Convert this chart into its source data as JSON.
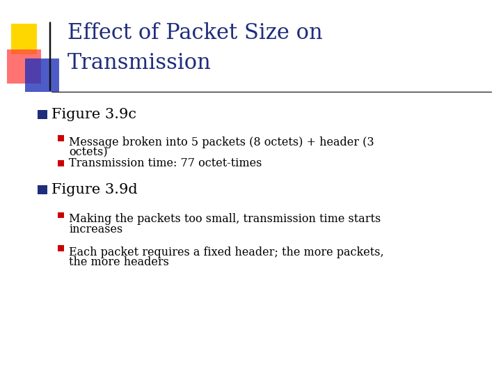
{
  "title_line1": "Effect of Packet Size on",
  "title_line2": "Transmission",
  "title_color": "#1F2D7B",
  "bg_color": "#FFFFFF",
  "bullet1": "Figure 3.9c",
  "sub_bullet1_1a": "Message broken into 5 packets (8 octets) + header (3",
  "sub_bullet1_1b": "octets)",
  "sub_bullet1_2": "Transmission time: 77 octet-times",
  "bullet2": "Figure 3.9d",
  "sub_bullet2_1a": "Making the packets too small, transmission time starts",
  "sub_bullet2_1b": "increases",
  "sub_bullet2_2a": "Each packet requires a fixed header; the more packets,",
  "sub_bullet2_2b": "the more headers",
  "bullet_color": "#1F2D7B",
  "sub_bullet_color": "#CC0000",
  "text_color": "#000000",
  "deco_yellow": "#FFD700",
  "deco_red": "#FF4444",
  "deco_blue": "#2233BB",
  "title_font_size": 22,
  "bullet_font_size": 15,
  "sub_bullet_font_size": 11.5
}
